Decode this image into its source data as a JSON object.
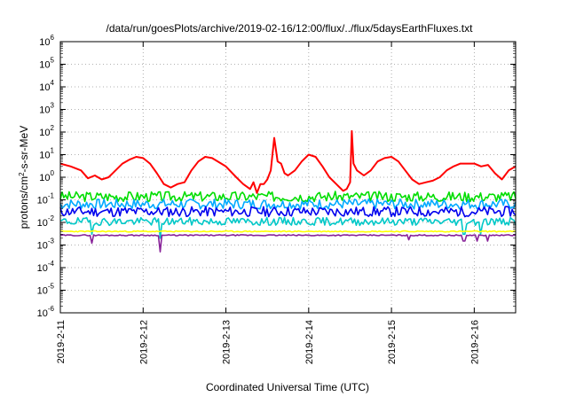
{
  "chart_data": {
    "type": "line",
    "title": "/data/run/goesPlots/archive/2019-02-16/12:00/flux/../flux/5daysEarthFluxes.txt",
    "xlabel": "Coordinated Universal Time (UTC)",
    "ylabel": {
      "base": "protons/cm",
      "sup": "2",
      "rest": "-s-sr-MeV"
    },
    "x_ticks": [
      "2019-2-11",
      "2019-2-12",
      "2019-2-13",
      "2019-2-14",
      "2019-2-15",
      "2019-2-16"
    ],
    "xlim": [
      "2019-02-11T00:00",
      "2019-02-16T12:00"
    ],
    "y_scale": "log",
    "ylim": [
      1e-06,
      1000000.0
    ],
    "y_ticks": [
      {
        "base": "10",
        "exp": "6",
        "value": 1000000.0
      },
      {
        "base": "10",
        "exp": "5",
        "value": 100000.0
      },
      {
        "base": "10",
        "exp": "4",
        "value": 10000.0
      },
      {
        "base": "10",
        "exp": "3",
        "value": 1000.0
      },
      {
        "base": "10",
        "exp": "2",
        "value": 100.0
      },
      {
        "base": "10",
        "exp": "1",
        "value": 10.0
      },
      {
        "base": "10",
        "exp": "0",
        "value": 1.0
      },
      {
        "base": "10",
        "exp": "-1",
        "value": 0.1
      },
      {
        "base": "10",
        "exp": "-2",
        "value": 0.01
      },
      {
        "base": "10",
        "exp": "-3",
        "value": 0.001
      },
      {
        "base": "10",
        "exp": "-4",
        "value": 0.0001
      },
      {
        "base": "10",
        "exp": "-5",
        "value": 1e-05
      },
      {
        "base": "10",
        "exp": "-6",
        "value": 1e-06
      }
    ],
    "grid": "dotted",
    "series": [
      {
        "color": "#ff0000",
        "points": [
          [
            "2019-02-11T00:00",
            4
          ],
          [
            "2019-02-11T03:00",
            3
          ],
          [
            "2019-02-11T06:00",
            2
          ],
          [
            "2019-02-11T08:00",
            0.9
          ],
          [
            "2019-02-11T10:00",
            1.2
          ],
          [
            "2019-02-11T12:00",
            0.8
          ],
          [
            "2019-02-11T14:00",
            1.0
          ],
          [
            "2019-02-11T16:00",
            2
          ],
          [
            "2019-02-11T18:00",
            4
          ],
          [
            "2019-02-11T20:00",
            6
          ],
          [
            "2019-02-11T22:00",
            8
          ],
          [
            "2019-02-12T00:00",
            7
          ],
          [
            "2019-02-12T02:00",
            4
          ],
          [
            "2019-02-12T04:00",
            1.5
          ],
          [
            "2019-02-12T06:00",
            0.5
          ],
          [
            "2019-02-12T08:00",
            0.35
          ],
          [
            "2019-02-12T10:00",
            0.5
          ],
          [
            "2019-02-12T12:00",
            0.6
          ],
          [
            "2019-02-12T14:00",
            2
          ],
          [
            "2019-02-12T16:00",
            5
          ],
          [
            "2019-02-12T18:00",
            8
          ],
          [
            "2019-02-12T20:00",
            7
          ],
          [
            "2019-02-13T00:00",
            3
          ],
          [
            "2019-02-13T03:00",
            1
          ],
          [
            "2019-02-13T05:00",
            0.5
          ],
          [
            "2019-02-13T07:00",
            0.3
          ],
          [
            "2019-02-13T08:00",
            0.6
          ],
          [
            "2019-02-13T09:00",
            0.2
          ],
          [
            "2019-02-13T10:00",
            0.5
          ],
          [
            "2019-02-13T11:00",
            0.5
          ],
          [
            "2019-02-13T12:00",
            0.8
          ],
          [
            "2019-02-13T13:00",
            2
          ],
          [
            "2019-02-13T14:00",
            55
          ],
          [
            "2019-02-13T15:00",
            5
          ],
          [
            "2019-02-13T16:00",
            4
          ],
          [
            "2019-02-13T17:00",
            1.5
          ],
          [
            "2019-02-13T18:00",
            1.2
          ],
          [
            "2019-02-13T20:00",
            2
          ],
          [
            "2019-02-13T22:00",
            5
          ],
          [
            "2019-02-14T00:00",
            10
          ],
          [
            "2019-02-14T02:00",
            8
          ],
          [
            "2019-02-14T04:00",
            3
          ],
          [
            "2019-02-14T06:00",
            1
          ],
          [
            "2019-02-14T08:00",
            0.5
          ],
          [
            "2019-02-14T09:00",
            0.35
          ],
          [
            "2019-02-14T10:00",
            0.25
          ],
          [
            "2019-02-14T11:00",
            0.3
          ],
          [
            "2019-02-14T12:00",
            0.6
          ],
          [
            "2019-02-14T12:30",
            110
          ],
          [
            "2019-02-14T13:00",
            4
          ],
          [
            "2019-02-14T14:00",
            2
          ],
          [
            "2019-02-14T16:00",
            1.2
          ],
          [
            "2019-02-14T18:00",
            2
          ],
          [
            "2019-02-14T20:00",
            5
          ],
          [
            "2019-02-14T22:00",
            7
          ],
          [
            "2019-02-15T00:00",
            8
          ],
          [
            "2019-02-15T02:00",
            5
          ],
          [
            "2019-02-15T04:00",
            2
          ],
          [
            "2019-02-15T06:00",
            0.8
          ],
          [
            "2019-02-15T08:00",
            0.5
          ],
          [
            "2019-02-15T10:00",
            0.6
          ],
          [
            "2019-02-15T12:00",
            0.7
          ],
          [
            "2019-02-15T14:00",
            1
          ],
          [
            "2019-02-15T16:00",
            2
          ],
          [
            "2019-02-15T18:00",
            3
          ],
          [
            "2019-02-15T20:00",
            4
          ],
          [
            "2019-02-16T00:00",
            4
          ],
          [
            "2019-02-16T02:00",
            3
          ],
          [
            "2019-02-16T04:00",
            3.5
          ],
          [
            "2019-02-16T06:00",
            1.5
          ],
          [
            "2019-02-16T08:00",
            0.8
          ],
          [
            "2019-02-16T10:00",
            2
          ],
          [
            "2019-02-16T12:00",
            3
          ]
        ]
      },
      {
        "color": "#00dd00",
        "base": 0.14,
        "amp": 0.45,
        "seed": 3,
        "dips": []
      },
      {
        "color": "#00aaff",
        "base": 0.065,
        "amp": 0.45,
        "seed": 7,
        "dips": []
      },
      {
        "color": "#0000ee",
        "base": 0.03,
        "amp": 0.45,
        "seed": 11,
        "dips": []
      },
      {
        "color": "#00c8c8",
        "base": 0.011,
        "amp": 0.35,
        "seed": 19,
        "dips": [
          [
            "2019-02-11T09:00",
            0.003
          ],
          [
            "2019-02-12T05:00",
            0.002
          ],
          [
            "2019-02-15T21:00",
            0.003
          ],
          [
            "2019-02-16T02:00",
            0.003
          ]
        ]
      },
      {
        "color": "#ffff00",
        "base": 0.004,
        "amp": 0.05,
        "seed": 23,
        "dips": []
      },
      {
        "color": "#882299",
        "base": 0.0027,
        "amp": 0.05,
        "seed": 29,
        "dips": [
          [
            "2019-02-11T09:00",
            0.0012
          ],
          [
            "2019-02-12T05:00",
            0.0005
          ],
          [
            "2019-02-15T05:00",
            0.0017
          ],
          [
            "2019-02-15T21:00",
            0.0015
          ],
          [
            "2019-02-16T01:00",
            0.0015
          ],
          [
            "2019-02-16T04:00",
            0.0015
          ]
        ]
      }
    ]
  }
}
